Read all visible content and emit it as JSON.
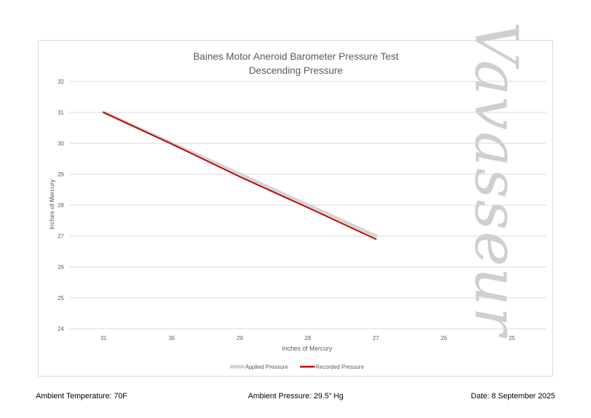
{
  "chart_data": {
    "type": "line",
    "title": "Baines Motor Aneroid Barometer Pressure Test",
    "subtitle": "Descending Pressure",
    "xlabel": "Inches of Mercury",
    "ylabel": "Inches of Mercury",
    "x_ticks": [
      31,
      30,
      29,
      28,
      27,
      26,
      25
    ],
    "y_ticks": [
      24,
      25,
      26,
      27,
      28,
      29,
      30,
      31,
      32
    ],
    "xlim": [
      31,
      25
    ],
    "ylim": [
      24,
      32
    ],
    "grid": true,
    "legend_position": "bottom",
    "series": [
      {
        "name": "Applied Pressure",
        "color": "#d4d4d4",
        "x": [
          31,
          30,
          29,
          28,
          27
        ],
        "y": [
          31,
          30,
          29,
          28,
          27
        ]
      },
      {
        "name": "Recorded Pressure",
        "color": "#c00000",
        "x": [
          31,
          30,
          29,
          28,
          27
        ],
        "y": [
          31,
          29.98,
          28.92,
          27.92,
          26.9
        ]
      }
    ]
  },
  "watermark": "Vavasseur",
  "footer": {
    "temperature": "Ambient Temperature: 70F",
    "pressure": "Ambient Pressure: 29.5” Hg",
    "date": "Date: 8 September 2025"
  }
}
